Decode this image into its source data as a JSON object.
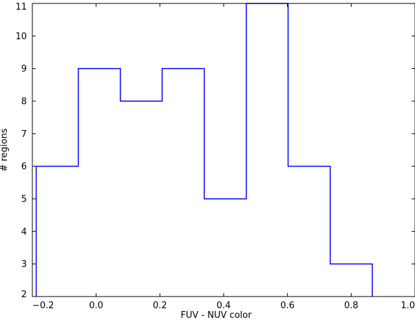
{
  "chart_data": {
    "type": "step-histogram",
    "title": "",
    "xlabel": "FUV - NUV color",
    "ylabel": "# regions",
    "xlim": [
      -0.2,
      1.0
    ],
    "ylim": [
      2,
      11
    ],
    "xticks": [
      -0.2,
      0.0,
      0.2,
      0.4,
      0.6,
      0.8,
      1.0
    ],
    "xtick_labels": [
      "−0.2",
      "0.0",
      "0.2",
      "0.4",
      "0.6",
      "0.8",
      "1.0"
    ],
    "yticks": [
      2,
      3,
      4,
      5,
      6,
      7,
      8,
      9,
      10,
      11
    ],
    "ytick_labels": [
      "2",
      "3",
      "4",
      "5",
      "6",
      "7",
      "8",
      "9",
      "10",
      "11"
    ],
    "bin_edges": [
      -0.188,
      -0.056,
      0.076,
      0.207,
      0.339,
      0.471,
      0.602,
      0.734,
      0.866
    ],
    "counts": [
      6,
      9,
      8,
      9,
      5,
      11,
      6,
      3
    ],
    "line_color": "#0000ff",
    "grid": false,
    "legend": "none"
  }
}
